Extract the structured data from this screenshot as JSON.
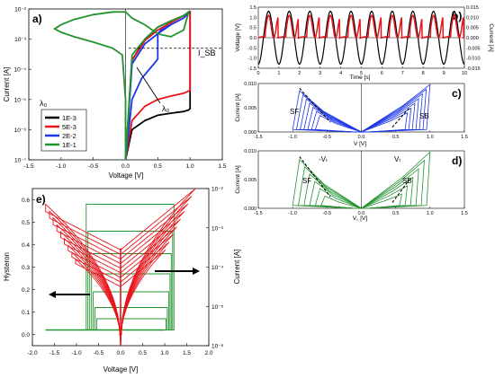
{
  "colors": {
    "black": "#000000",
    "red": "#e8141b",
    "blue": "#1c36e6",
    "green": "#23932f"
  },
  "chart_data": [
    {
      "panel_label": "a)",
      "type": "line",
      "xlabel": "Voltage [V]",
      "ylabel": "Current [A]",
      "xlim": [
        -1.5,
        1.5
      ],
      "ylim": [
        1e-07,
        0.01
      ],
      "yscale": "log",
      "x_ticks": [
        "-1.5",
        "-1.0",
        "-0.5",
        "0.0",
        "0.5",
        "1.0",
        "1.5"
      ],
      "y_ticks": [
        "10⁻⁷",
        "10⁻⁶",
        "10⁻⁵",
        "10⁻⁴",
        "10⁻³",
        "10⁻²"
      ],
      "legend_title": "λ₀",
      "legend": [
        "1E-3",
        "5E-3",
        "2E-2",
        "1E-1"
      ],
      "legend_position": "bottom-left",
      "annotations": {
        "isb": "I_SB",
        "lambda": "λ₀"
      },
      "isb_level": 0.0005,
      "series": [
        {
          "name": "1E-3",
          "color": "black",
          "x": [
            0,
            0.1,
            0.3,
            0.5,
            0.7,
            0.9,
            0.98,
            1.0,
            1.0,
            0.98,
            0.9,
            0.7,
            0.5,
            0.3,
            0.1,
            0
          ],
          "y": [
            1e-07,
            1e-06,
            2e-06,
            3e-06,
            3.5e-06,
            4e-06,
            4.5e-06,
            5e-06,
            0.008,
            0.008,
            0.006,
            0.004,
            0.0025,
            0.001,
            0.0002,
            1e-07
          ]
        },
        {
          "name": "5E-3",
          "color": "red",
          "x": [
            0,
            0.1,
            0.3,
            0.5,
            0.7,
            0.9,
            1.0,
            1.0,
            0.9,
            0.7,
            0.5,
            0.3,
            0.1,
            0
          ],
          "y": [
            1e-07,
            2e-06,
            6e-06,
            1e-05,
            1.3e-05,
            1.6e-05,
            2e-05,
            0.008,
            0.006,
            0.0035,
            0.002,
            0.0009,
            0.0002,
            1e-07
          ]
        },
        {
          "name": "2E-2",
          "color": "blue",
          "x": [
            0,
            0.1,
            0.25,
            0.4,
            0.45,
            0.5,
            0.5,
            0.55,
            0.7,
            0.9,
            1.0,
            0.9,
            0.7,
            0.5,
            0.3,
            0.1,
            0
          ],
          "y": [
            1e-07,
            1e-05,
            5e-05,
            0.00012,
            0.00016,
            0.00022,
            0.0015,
            0.002,
            0.003,
            0.005,
            0.008,
            0.005,
            0.003,
            0.0015,
            0.0007,
            0.00015,
            1e-07
          ]
        },
        {
          "name": "1E-1",
          "color": "green",
          "x": [
            0,
            0,
            -0.05,
            -0.2,
            -0.5,
            -0.8,
            -1.0,
            -1.1,
            -1.0,
            -0.8,
            -0.5,
            -0.2,
            0,
            0.1,
            0.3,
            0.5,
            0.7,
            0.9,
            0.98,
            0.9,
            0.7,
            0.5,
            0.3,
            0.1,
            0
          ],
          "y": [
            1e-07,
            1e-05,
            0.0003,
            0.0005,
            0.0008,
            0.0012,
            0.0017,
            0.0022,
            0.003,
            0.0045,
            0.0065,
            0.008,
            0.008,
            0.005,
            0.003,
            0.0015,
            0.0012,
            0.002,
            0.008,
            0.006,
            0.004,
            0.0025,
            0.001,
            0.0003,
            1e-07
          ]
        }
      ]
    },
    {
      "panel_label": "b)",
      "type": "line",
      "xlabel": "Time [s]",
      "ylabel": "Voltage [V]",
      "ylabel_right": "Current [A]",
      "xlim": [
        0,
        10
      ],
      "ylim": [
        -1.5,
        1.5
      ],
      "ylim_right": [
        -0.015,
        0.015
      ],
      "x_ticks": [
        "0",
        "1",
        "2",
        "3",
        "4",
        "5",
        "6",
        "7",
        "8",
        "9",
        "10"
      ],
      "y_ticks": [
        "-1.5",
        "-1.0",
        "-0.5",
        "0.0",
        "0.5",
        "1.0",
        "1.5"
      ],
      "y_ticks_right": [
        "-0.015",
        "-0.010",
        "-0.005",
        "0.000",
        "0.005",
        "0.010",
        "0.015"
      ],
      "period": 1,
      "voltage_amplitude": 1.3,
      "current_amplitude": 0.011
    },
    {
      "panel_label": "c)",
      "type": "line",
      "xlabel": "V [V]",
      "ylabel": "Current [A]",
      "xlim": [
        -1.5,
        1.5
      ],
      "ylim": [
        0,
        0.01
      ],
      "x_ticks": [
        "-1.5",
        "-1.0",
        "-0.5",
        "0.0",
        "0.5",
        "1.0",
        "1.5"
      ],
      "y_ticks": [
        "0.000",
        "0.005",
        "0.010"
      ],
      "labels": {
        "sf": "SF",
        "sb": "SB"
      },
      "loop_scales": [
        1.0,
        0.9,
        0.8,
        0.7,
        0.6,
        0.5,
        0.4
      ]
    },
    {
      "panel_label": "d)",
      "type": "line",
      "xlabel": "V꜀ [V]",
      "ylabel": "Current [A]",
      "xlim": [
        -1.5,
        1.5
      ],
      "ylim": [
        0,
        0.01
      ],
      "x_ticks": [
        "-1.5",
        "-1.0",
        "-0.5",
        "0.0",
        "0.5",
        "1.0",
        "1.5"
      ],
      "y_ticks": [
        "0.000",
        "0.005",
        "0.010"
      ],
      "labels": {
        "sf": "SF",
        "sb": "SB",
        "vt_neg": "-Vₜ",
        "vt_pos": "Vₜ"
      },
      "loop_scales": [
        1.0,
        0.85,
        0.7,
        0.55,
        0.4,
        0.25
      ]
    },
    {
      "panel_label": "e)",
      "type": "line",
      "xlabel": "Voltage [V]",
      "ylabel": "Hysteron",
      "ylabel_right": "Current [A]",
      "xlim": [
        -2.0,
        2.0
      ],
      "ylim": [
        -0.05,
        0.65
      ],
      "ylim_right": [
        1e-06,
        0.01
      ],
      "x_ticks": [
        "-2.0",
        "-1.5",
        "-1.0",
        "-0.5",
        "0.0",
        "0.5",
        "1.0",
        "1.5",
        "2.0"
      ],
      "y_ticks": [
        "0.0",
        "0.1",
        "0.2",
        "0.3",
        "0.4",
        "0.5",
        "0.6"
      ],
      "y_ticks_right": [
        "10⁻⁶",
        "10⁻⁵",
        "10⁻⁴",
        "10⁻³",
        "10⁻²"
      ],
      "hysteron_levels": [
        0.02,
        0.07,
        0.12,
        0.19,
        0.27,
        0.36,
        0.46,
        0.58
      ],
      "current_loop_scales": [
        1.0,
        0.95,
        0.9,
        0.85,
        0.8,
        0.75,
        0.7,
        0.65,
        0.6
      ]
    }
  ]
}
